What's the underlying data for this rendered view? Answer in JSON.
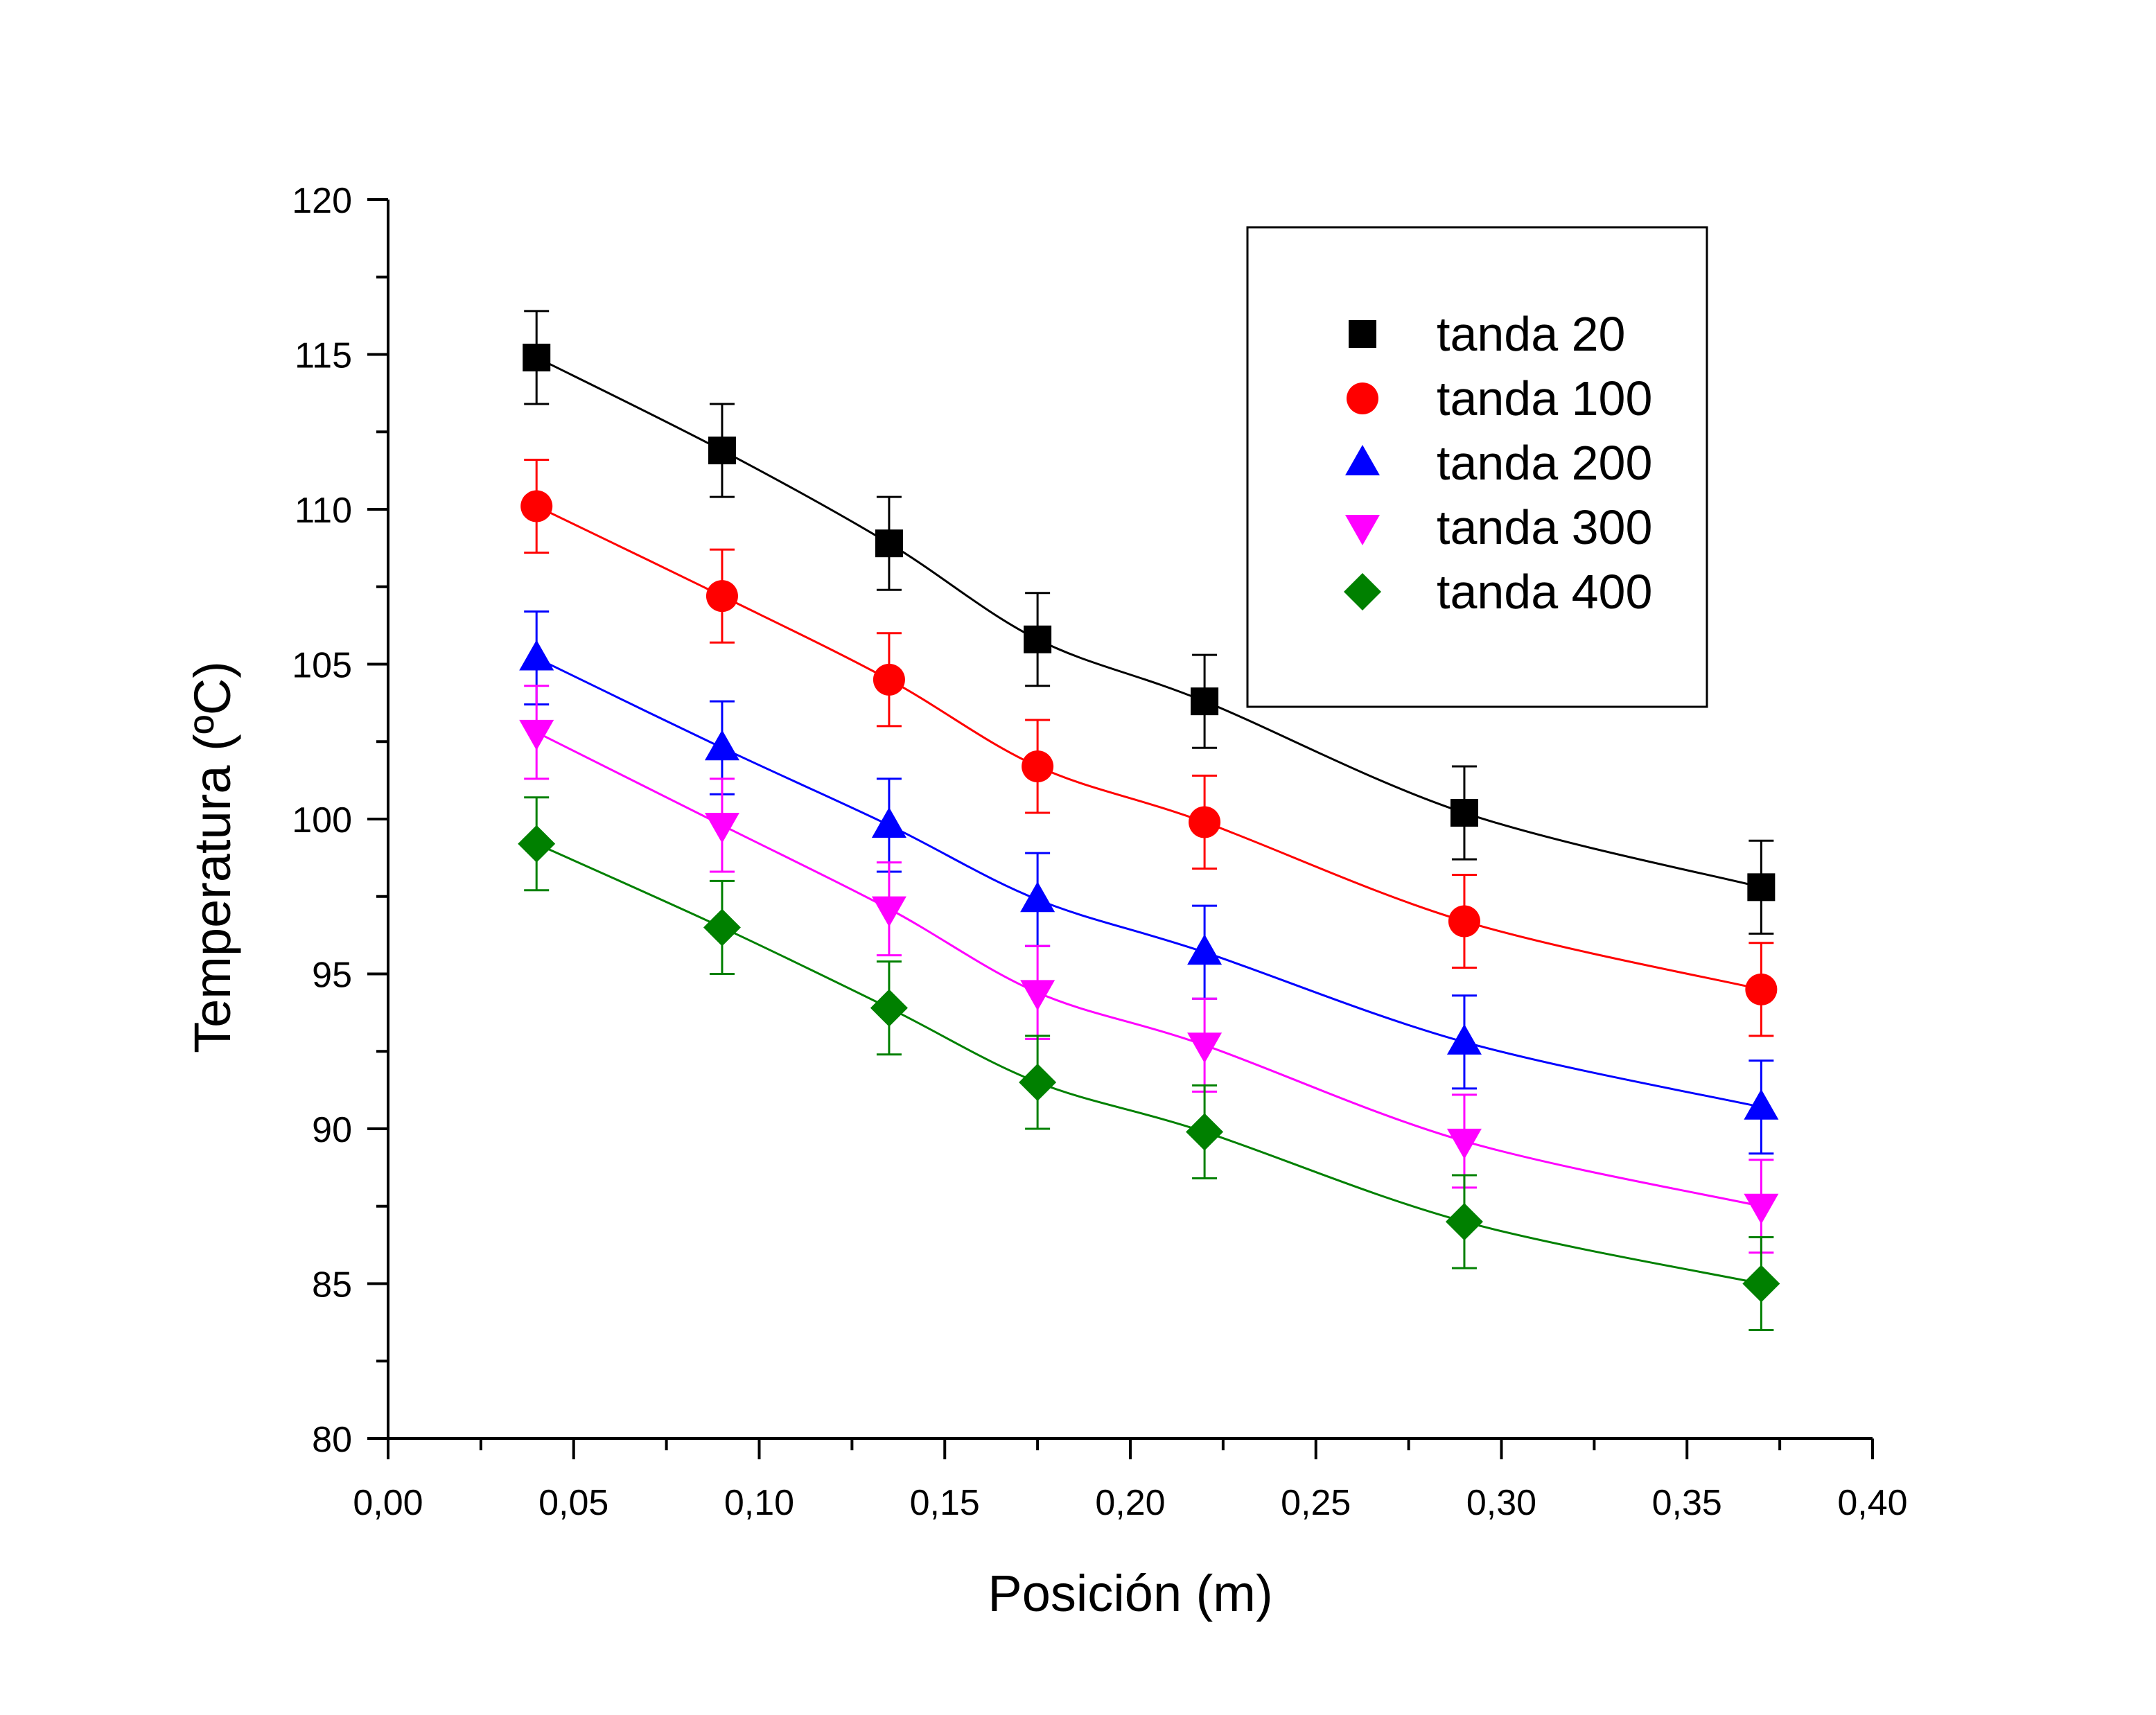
{
  "chart_data": {
    "type": "scatter",
    "title": "",
    "xlabel": "Posición (m)",
    "ylabel": "Temperatura (ºC)",
    "xlim": [
      0,
      0.4
    ],
    "ylim": [
      80,
      120
    ],
    "x_ticks": [
      "0,00",
      "0,05",
      "0,10",
      "0,15",
      "0,20",
      "0,25",
      "0,30",
      "0,35",
      "0,40"
    ],
    "y_ticks": [
      "80",
      "85",
      "90",
      "95",
      "100",
      "105",
      "110",
      "115",
      "120"
    ],
    "x_tick_values": [
      0,
      0.05,
      0.1,
      0.15,
      0.2,
      0.25,
      0.3,
      0.35,
      0.4
    ],
    "y_tick_values": [
      80,
      85,
      90,
      95,
      100,
      105,
      110,
      115,
      120
    ],
    "grid": false,
    "legend_position": "top-right",
    "x": [
      0.04,
      0.09,
      0.135,
      0.175,
      0.22,
      0.29,
      0.37
    ],
    "series": [
      {
        "name": "tanda 20",
        "marker": "square",
        "color": "#000000",
        "values": [
          114.9,
          111.9,
          108.9,
          105.8,
          103.8,
          100.2,
          97.8
        ],
        "error": 1.5
      },
      {
        "name": "tanda 100",
        "marker": "circle",
        "color": "#ff0000",
        "values": [
          110.1,
          107.2,
          104.5,
          101.7,
          99.9,
          96.7,
          94.5
        ],
        "error": 1.5
      },
      {
        "name": "tanda 200",
        "marker": "triangle",
        "color": "#0000ff",
        "values": [
          105.2,
          102.3,
          99.8,
          97.4,
          95.7,
          92.8,
          90.7
        ],
        "error": 1.5
      },
      {
        "name": "tanda 300",
        "marker": "triangle-down",
        "color": "#ff00ff",
        "values": [
          102.8,
          99.8,
          97.1,
          94.4,
          92.7,
          89.6,
          87.5
        ],
        "error": 1.5
      },
      {
        "name": "tanda 400",
        "marker": "diamond",
        "color": "#008000",
        "values": [
          99.2,
          96.5,
          93.9,
          91.5,
          89.9,
          87.0,
          85.0
        ],
        "error": 1.5
      }
    ]
  }
}
